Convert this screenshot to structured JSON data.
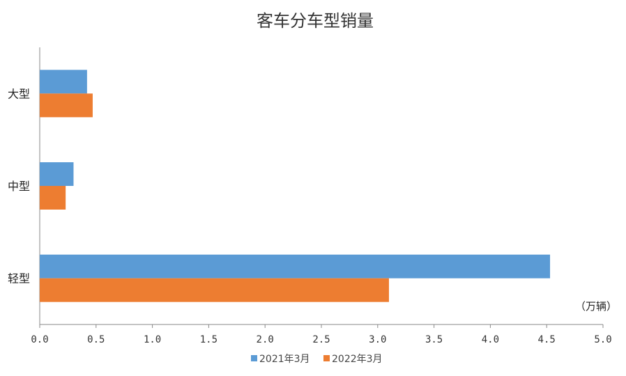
{
  "chart_data": {
    "type": "bar",
    "orientation": "horizontal",
    "title": "客车分车型销量",
    "unit_label": "（万辆）",
    "categories": [
      "大型",
      "中型",
      "轻型"
    ],
    "series": [
      {
        "name": "2021年3月",
        "values": [
          0.42,
          0.3,
          4.53
        ],
        "color": "#5B9BD5"
      },
      {
        "name": "2022年3月",
        "values": [
          0.47,
          0.23,
          3.1
        ],
        "color": "#ED7D31"
      }
    ],
    "x_ticks": [
      "0.0",
      "0.5",
      "1.0",
      "1.5",
      "2.0",
      "2.5",
      "3.0",
      "3.5",
      "4.0",
      "4.5",
      "5.0"
    ],
    "xlim": [
      0,
      5
    ],
    "grid": false,
    "legend_position": "bottom"
  }
}
